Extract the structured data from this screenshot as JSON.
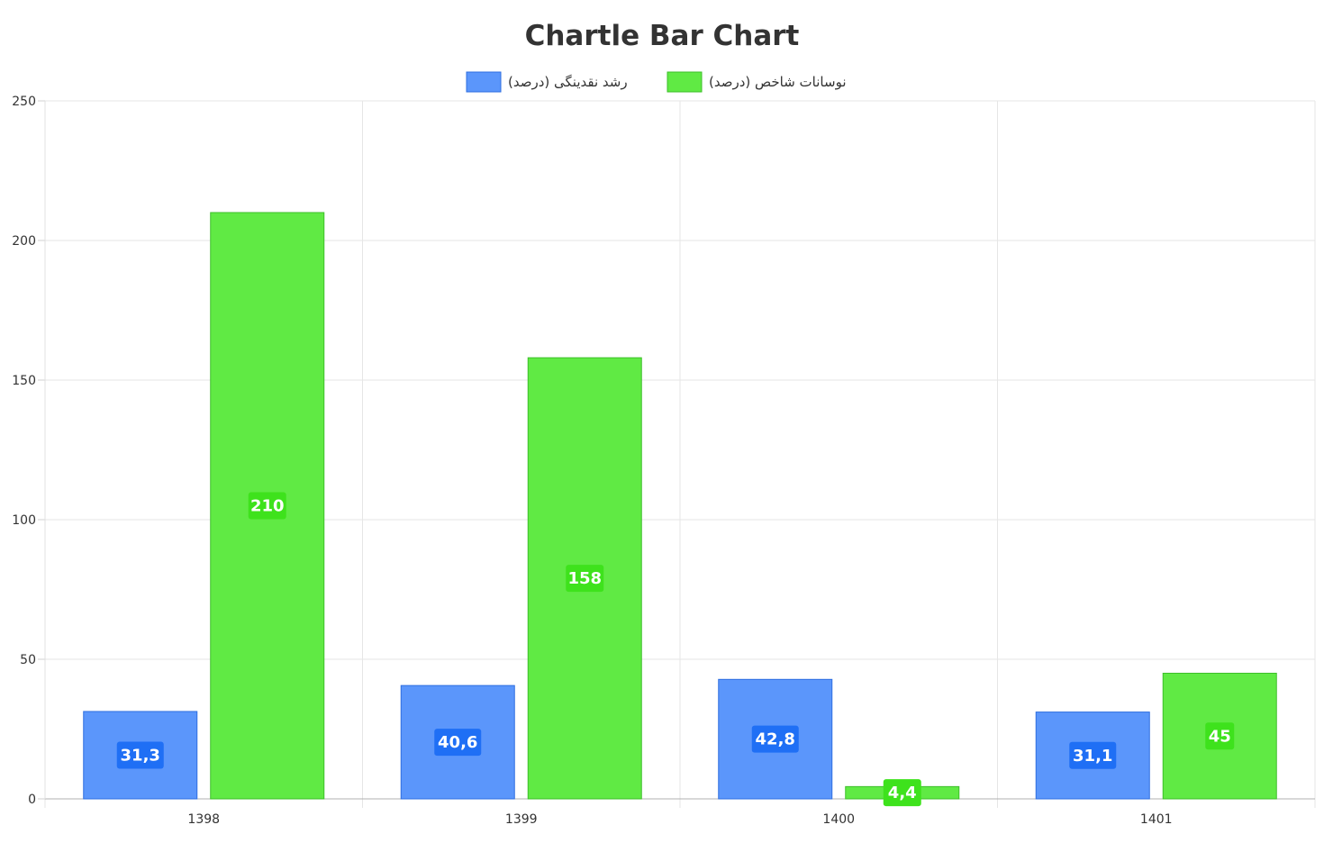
{
  "chart_data": {
    "type": "bar",
    "title": "Chartle Bar Chart",
    "categories": [
      "1398",
      "1399",
      "1400",
      "1401"
    ],
    "series": [
      {
        "name": "رشد نقدینگی (درصد)",
        "values": [
          31.3,
          40.6,
          42.8,
          31.1
        ],
        "labels": [
          "31,3",
          "40,6",
          "42,8",
          "31,1"
        ],
        "color": "#5b96fb",
        "border": "#2f6fe0",
        "label_bg": "#1f6ff5"
      },
      {
        "name": "نوسانات شاخص (درصد)",
        "values": [
          210,
          158,
          4.4,
          45
        ],
        "labels": [
          "210",
          "158",
          "4,4",
          "45"
        ],
        "color": "#60ea44",
        "border": "#3dbf2a",
        "label_bg": "#3ee21c"
      }
    ],
    "ylim": [
      0,
      250
    ],
    "yticks": [
      0,
      50,
      100,
      150,
      200,
      250
    ],
    "grid": true,
    "legend": "top-center",
    "xlabel": "",
    "ylabel": ""
  }
}
